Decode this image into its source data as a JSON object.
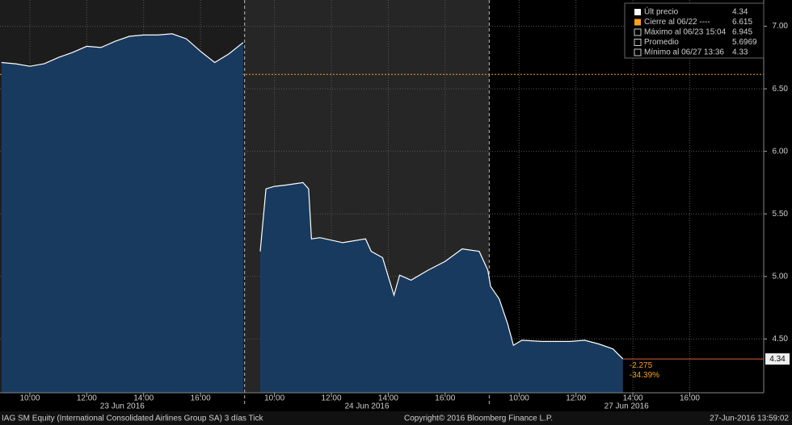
{
  "chart_data": {
    "type": "area",
    "xlim": [
      -0.05,
      26.8
    ],
    "ylim": [
      4.07,
      7.21
    ],
    "xticks": [
      {
        "value": 1.0,
        "label": "10:00"
      },
      {
        "value": 3.0,
        "label": "12:00"
      },
      {
        "value": 5.0,
        "label": "14:00"
      },
      {
        "value": 7.0,
        "label": "16:00"
      },
      {
        "value": 9.6,
        "label": "10:00"
      },
      {
        "value": 11.6,
        "label": "12:00"
      },
      {
        "value": 13.6,
        "label": "14:00"
      },
      {
        "value": 15.6,
        "label": "16:00"
      },
      {
        "value": 18.2,
        "label": "10:00"
      },
      {
        "value": 20.2,
        "label": "12:00"
      },
      {
        "value": 22.2,
        "label": "14:00"
      },
      {
        "value": 24.2,
        "label": "16:00"
      }
    ],
    "yticks": [
      {
        "value": 4.5,
        "label": "4.50"
      },
      {
        "value": 5.0,
        "label": "5.00"
      },
      {
        "value": 5.5,
        "label": "5.50"
      },
      {
        "value": 6.0,
        "label": "6.00"
      },
      {
        "value": 6.5,
        "label": "6.50"
      },
      {
        "value": 7.0,
        "label": "7.00"
      }
    ],
    "grid": true,
    "sessions": [
      {
        "label": "23 Jun 2016",
        "start": -0.05,
        "end": 8.55,
        "background": "#1c1c1c"
      },
      {
        "label": "24 Jun 2016",
        "start": 8.55,
        "end": 17.15,
        "background": "#262626"
      },
      {
        "label": "27 Jun 2016",
        "start": 17.15,
        "end": 26.8,
        "background": "#000000"
      }
    ],
    "series": [
      {
        "name": "Últ precio",
        "color": "#ffffff",
        "fill": "#183a5e",
        "x": [
          0,
          0.5,
          1.0,
          1.5,
          2.0,
          2.5,
          3.0,
          3.5,
          4.0,
          4.5,
          5.0,
          5.5,
          6.0,
          6.5,
          7.0,
          7.5,
          8.0,
          8.5,
          8.8,
          9.1,
          9.3,
          9.6,
          10.0,
          10.6,
          10.8,
          10.9,
          11.2,
          12.0,
          12.8,
          13.0,
          13.4,
          13.6,
          13.8,
          14.0,
          14.4,
          15.0,
          15.6,
          16.2,
          16.8,
          17.1,
          17.2,
          17.5,
          17.8,
          18.0,
          18.3,
          19.0,
          20.0,
          20.5,
          21.0,
          21.5,
          21.85
        ],
        "values": [
          6.71,
          6.7,
          6.68,
          6.7,
          6.75,
          6.79,
          6.84,
          6.83,
          6.88,
          6.92,
          6.93,
          6.93,
          6.94,
          6.9,
          6.8,
          6.71,
          6.78,
          6.87,
          null,
          5.2,
          5.7,
          5.72,
          5.73,
          5.75,
          5.7,
          5.3,
          5.31,
          5.27,
          5.3,
          5.2,
          5.15,
          5.0,
          4.85,
          5.01,
          4.97,
          5.05,
          5.12,
          5.22,
          5.2,
          5.05,
          4.92,
          4.82,
          4.62,
          4.45,
          4.49,
          4.48,
          4.48,
          4.49,
          4.46,
          4.42,
          4.34
        ]
      }
    ],
    "reference_line": {
      "value": 6.615,
      "color": "#f7a21b"
    },
    "last_price": {
      "value": 4.34,
      "color": "#e05a3a"
    },
    "annotations": [
      "-2.275",
      "-34.39%"
    ],
    "legend": [
      {
        "label": "Últ precio",
        "value": 4.34,
        "color": "#ffffff"
      },
      {
        "label": "Cierre al 06/22 ----",
        "value": 6.615,
        "color": "#f7a21b"
      },
      {
        "label": "Máximo al 06/23 15:04",
        "value": 6.945,
        "color": "#cccccc"
      },
      {
        "label": "Promedio",
        "value": 5.6969,
        "color": "#cccccc"
      },
      {
        "label": "Mínimo al 06/27 13:36",
        "value": 4.33,
        "color": "#cccccc"
      }
    ],
    "footer": {
      "left": "IAG SM Equity (International Consolidated Airlines Group SA) 3 días  Tick",
      "center": "Copyright© 2016 Bloomberg Finance L.P.",
      "right": "27-Jun-2016 13:59:02"
    }
  }
}
